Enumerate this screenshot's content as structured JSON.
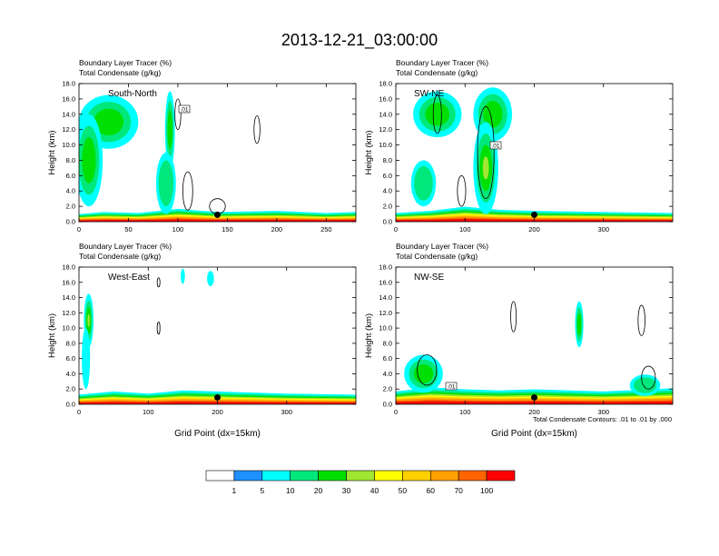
{
  "figure": {
    "title": "2013-12-21_03:00:00",
    "contour_note": "Total Condensate Contours: .01 to .01 by .000"
  },
  "colorbar": {
    "colors": [
      "#ffffff",
      "#1e90ff",
      "#00ffff",
      "#00e87c",
      "#00e000",
      "#a0e632",
      "#ffff00",
      "#ffd000",
      "#ffa000",
      "#ff6400",
      "#ff0000"
    ],
    "labels": [
      "1",
      "5",
      "10",
      "20",
      "30",
      "40",
      "50",
      "60",
      "70",
      "100"
    ]
  },
  "chart_data": [
    {
      "type": "heatmap",
      "panel_label": "South-North",
      "subtitle_1": "Boundary Layer Tracer   (%)",
      "subtitle_2": "Total Condensate   (g/kg)",
      "ylabel": "Height (km)",
      "xlabel": "",
      "xlim": [
        0,
        280
      ],
      "ylim": [
        0,
        18
      ],
      "xticks": [
        0,
        50,
        100,
        150,
        200,
        250
      ],
      "yticks": [
        "0.0",
        "2.0",
        "4.0",
        "6.0",
        "8.0",
        "10.0",
        "12.0",
        "14.0",
        "16.0",
        "18.0"
      ],
      "marker_x": 140,
      "contour_label": ".01"
    },
    {
      "type": "heatmap",
      "panel_label": "SW-NE",
      "subtitle_1": "Boundary Layer Tracer   (%)",
      "subtitle_2": "Total Condensate   (g/kg)",
      "ylabel": "Height (km)",
      "xlabel": "",
      "xlim": [
        0,
        400
      ],
      "ylim": [
        0,
        18
      ],
      "xticks": [
        0,
        100,
        200,
        300
      ],
      "yticks": [
        "0.0",
        "2.0",
        "4.0",
        "6.0",
        "8.0",
        "10.0",
        "12.0",
        "14.0",
        "16.0",
        "18.0"
      ],
      "marker_x": 200,
      "contour_label": ".01"
    },
    {
      "type": "heatmap",
      "panel_label": "West-East",
      "subtitle_1": "Boundary Layer Tracer   (%)",
      "subtitle_2": "Total Condensate   (g/kg)",
      "ylabel": "Height (km)",
      "xlabel": "Grid Point (dx=15km)",
      "xlim": [
        0,
        400
      ],
      "ylim": [
        0,
        18
      ],
      "xticks": [
        0,
        100,
        200,
        300
      ],
      "yticks": [
        "0.0",
        "2.0",
        "4.0",
        "6.0",
        "8.0",
        "10.0",
        "12.0",
        "14.0",
        "16.0",
        "18.0"
      ],
      "marker_x": 200,
      "contour_label": ""
    },
    {
      "type": "heatmap",
      "panel_label": "NW-SE",
      "subtitle_1": "Boundary Layer Tracer   (%)",
      "subtitle_2": "Total Condensate   (g/kg)",
      "ylabel": "Height (km)",
      "xlabel": "Grid Point (dx=15km)",
      "xlim": [
        0,
        400
      ],
      "ylim": [
        0,
        18
      ],
      "xticks": [
        0,
        100,
        200,
        300
      ],
      "yticks": [
        "0.0",
        "2.0",
        "4.0",
        "6.0",
        "8.0",
        "10.0",
        "12.0",
        "14.0",
        "16.0",
        "18.0"
      ],
      "marker_x": 200,
      "contour_label": ".01"
    }
  ]
}
